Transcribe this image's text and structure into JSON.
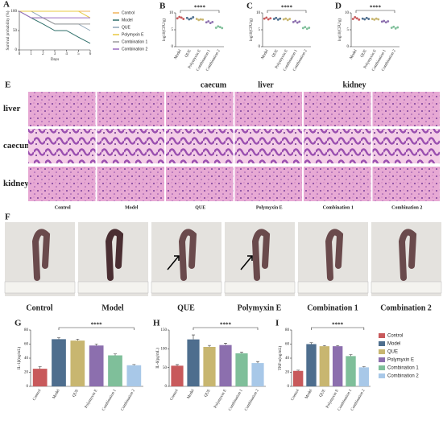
{
  "chart_data": [
    {
      "type": "line",
      "label": "A",
      "xlabel": "Days",
      "ylabel": "Survival probability (%)",
      "x": [
        0,
        1,
        2,
        3,
        4,
        5,
        6
      ],
      "xlim": [
        0,
        6
      ],
      "xticks": [
        0,
        1,
        2,
        3,
        4,
        5,
        6
      ],
      "ylim": [
        0,
        100
      ],
      "yticks": [
        0,
        50,
        100
      ],
      "series": [
        {
          "name": "Control",
          "color": "#f0b35a",
          "values": [
            100,
            100,
            100,
            100,
            100,
            100,
            100
          ]
        },
        {
          "name": "Model",
          "color": "#2f6f6a",
          "values": [
            100,
            83,
            67,
            50,
            50,
            33,
            17
          ]
        },
        {
          "name": "QUE",
          "color": "#8fa6b8",
          "values": [
            100,
            100,
            83,
            67,
            67,
            67,
            50
          ]
        },
        {
          "name": "Polymyxin E",
          "color": "#e8c840",
          "values": [
            100,
            100,
            100,
            100,
            100,
            100,
            83
          ]
        },
        {
          "name": "Combination 1",
          "color": "#9a9a9a",
          "values": [
            100,
            83,
            83,
            67,
            67,
            67,
            67
          ]
        },
        {
          "name": "Combination 2",
          "color": "#9a6cc0",
          "values": [
            100,
            83,
            83,
            83,
            83,
            83,
            83
          ]
        }
      ]
    },
    {
      "type": "dot",
      "label": "B",
      "ylabel": "log10(CFU/g)",
      "significance": "****",
      "categories": [
        "Model",
        "QUE",
        "Polymyxin E",
        "Combination 1",
        "Combination 2"
      ],
      "colors": [
        "#c8595b",
        "#4e6e8e",
        "#c8b670",
        "#8c6fae",
        "#7fbf9a"
      ],
      "ylim": [
        0,
        10
      ],
      "yticks": [
        0,
        5,
        10
      ],
      "values": [
        [
          8.4,
          8.8,
          8.6,
          8.2
        ],
        [
          8.5,
          8.1,
          8.3,
          8.7
        ],
        [
          8.2,
          7.9,
          8.1,
          8.0
        ],
        [
          7.2,
          7.5,
          7.0,
          7.3
        ],
        [
          5.6,
          6.0,
          5.8,
          5.5
        ]
      ]
    },
    {
      "type": "dot",
      "label": "C",
      "ylabel": "log10(CFU/g)",
      "significance": "****",
      "categories": [
        "Model",
        "QUE",
        "Polymyxin E",
        "Combination 1",
        "Combination 2"
      ],
      "colors": [
        "#c8595b",
        "#4e6e8e",
        "#c8b670",
        "#8c6fae",
        "#7fbf9a"
      ],
      "ylim": [
        0,
        10
      ],
      "yticks": [
        0,
        5,
        10
      ],
      "values": [
        [
          8.3,
          8.6,
          8.1,
          8.4
        ],
        [
          8.2,
          8.5,
          8.0,
          8.3
        ],
        [
          8.1,
          8.3,
          7.9,
          8.2
        ],
        [
          7.3,
          7.6,
          7.1,
          7.4
        ],
        [
          5.5,
          5.8,
          5.3,
          5.6
        ]
      ]
    },
    {
      "type": "dot",
      "label": "D",
      "ylabel": "log10(CFU/g)",
      "significance": "****",
      "categories": [
        "Model",
        "QUE",
        "Polymyxin E",
        "Combination 1",
        "Combination 2"
      ],
      "colors": [
        "#c8595b",
        "#4e6e8e",
        "#c8b670",
        "#8c6fae",
        "#7fbf9a"
      ],
      "ylim": [
        0,
        10
      ],
      "yticks": [
        0,
        5,
        10
      ],
      "values": [
        [
          8.2,
          8.7,
          8.4,
          8.0
        ],
        [
          8.3,
          8.1,
          8.5,
          8.2
        ],
        [
          8.2,
          8.0,
          8.3,
          8.1
        ],
        [
          7.4,
          7.6,
          7.2,
          7.5
        ],
        [
          5.6,
          5.9,
          5.4,
          5.7
        ]
      ]
    },
    {
      "type": "bar",
      "label": "G",
      "ylabel": "IL-1β(ng/mL)",
      "significance": "****",
      "categories": [
        "Control",
        "Model",
        "QUE",
        "Polymyxin E",
        "Combination 1",
        "Combination 2"
      ],
      "colors": [
        "#c8595b",
        "#4e6e8e",
        "#c8b670",
        "#8c6fae",
        "#7fbf9a",
        "#a8c8e8"
      ],
      "ylim": [
        0,
        80
      ],
      "yticks": [
        0,
        20,
        40,
        60,
        80
      ],
      "values": [
        25,
        67,
        65,
        58,
        44,
        30
      ],
      "errors": [
        3,
        2,
        2,
        2,
        2,
        1
      ]
    },
    {
      "type": "bar",
      "label": "H",
      "ylabel": "IL-6(pg/mL)",
      "significance": "****",
      "categories": [
        "Control",
        "Model",
        "QUE",
        "Polymyxin E",
        "Combination 1",
        "Combination 2"
      ],
      "colors": [
        "#c8595b",
        "#4e6e8e",
        "#c8b670",
        "#8c6fae",
        "#7fbf9a",
        "#a8c8e8"
      ],
      "ylim": [
        0,
        150
      ],
      "yticks": [
        0,
        50,
        100,
        150
      ],
      "values": [
        55,
        125,
        105,
        110,
        88,
        62
      ],
      "errors": [
        3,
        12,
        4,
        5,
        3,
        4
      ]
    },
    {
      "type": "bar",
      "label": "I",
      "ylabel": "TNF-α(ng/mL)",
      "significance": "****",
      "legend": true,
      "categories": [
        "Control",
        "Model",
        "QUE",
        "Polymyxin E",
        "Combination 1",
        "Combination 2"
      ],
      "colors": [
        "#c8595b",
        "#4e6e8e",
        "#c8b670",
        "#8c6fae",
        "#7fbf9a",
        "#a8c8e8"
      ],
      "ylim": [
        0,
        80
      ],
      "yticks": [
        0,
        20,
        40,
        60,
        80
      ],
      "values": [
        22,
        60,
        57,
        57,
        43,
        27
      ],
      "errors": [
        1,
        2,
        1,
        1,
        2,
        1
      ]
    }
  ],
  "histology": {
    "label": "E",
    "headers": [
      "caecum",
      "liver",
      "kidney"
    ],
    "rows": [
      "liver",
      "caecum",
      "kidney"
    ],
    "columns": [
      "Control",
      "Model",
      "QUE",
      "Polymyxin E",
      "Combination 1",
      "Combination 2"
    ]
  },
  "photos": {
    "label": "F",
    "captions": [
      "Control",
      "Model",
      "QUE",
      "Polymyxin E",
      "Combination 1",
      "Combination 2"
    ]
  }
}
